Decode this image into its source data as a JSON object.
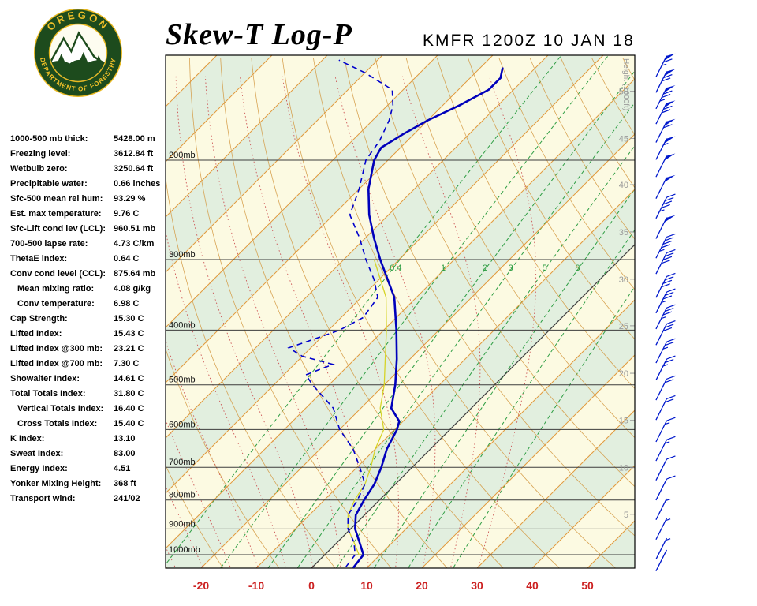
{
  "header": {
    "title": "Skew-T Log-P",
    "station": "KMFR 1200Z 10 JAN 18"
  },
  "logo": {
    "arc_top": "OREGON",
    "arc_bottom": "DEPARTMENT OF FORESTRY"
  },
  "indices": [
    {
      "label": "1000-500 mb thick:",
      "value": "5428.00 m",
      "indent": false
    },
    {
      "label": "Freezing level:",
      "value": "3612.84 ft",
      "indent": false
    },
    {
      "label": "Wetbulb zero:",
      "value": "3250.64 ft",
      "indent": false
    },
    {
      "label": "Precipitable water:",
      "value": "0.66 inches",
      "indent": false
    },
    {
      "label": "Sfc-500 mean rel hum:",
      "value": "93.29 %",
      "indent": false
    },
    {
      "label": "Est. max temperature:",
      "value": "9.76 C",
      "indent": false
    },
    {
      "label": "Sfc-Lift cond lev (LCL):",
      "value": "960.51 mb",
      "indent": false
    },
    {
      "label": "700-500 lapse rate:",
      "value": "4.73 C/km",
      "indent": false
    },
    {
      "label": "ThetaE index:",
      "value": "0.64 C",
      "indent": false
    },
    {
      "label": "Conv cond level (CCL):",
      "value": "875.64 mb",
      "indent": false
    },
    {
      "label": "Mean mixing ratio:",
      "value": "4.08 g/kg",
      "indent": true
    },
    {
      "label": "Conv temperature:",
      "value": "6.98 C",
      "indent": true
    },
    {
      "label": "Cap Strength:",
      "value": "15.30 C",
      "indent": false
    },
    {
      "label": "Lifted Index:",
      "value": "15.43 C",
      "indent": false
    },
    {
      "label": "Lifted Index @300 mb:",
      "value": "23.21 C",
      "indent": false
    },
    {
      "label": "Lifted Index @700 mb:",
      "value": "7.30 C",
      "indent": false
    },
    {
      "label": "Showalter Index:",
      "value": "14.61 C",
      "indent": false
    },
    {
      "label": "Total Totals Index:",
      "value": "31.80 C",
      "indent": false
    },
    {
      "label": "Vertical Totals Index:",
      "value": "16.40 C",
      "indent": true
    },
    {
      "label": "Cross Totals Index:",
      "value": "15.40 C",
      "indent": true
    },
    {
      "label": "K Index:",
      "value": "13.10",
      "indent": false
    },
    {
      "label": "Sweat Index:",
      "value": "83.00",
      "indent": false
    },
    {
      "label": "Energy Index:",
      "value": "4.51",
      "indent": false
    },
    {
      "label": "Yonker Mixing Height:",
      "value": "368 ft",
      "indent": false
    },
    {
      "label": "Transport wind:",
      "value": "241/02",
      "indent": false
    }
  ],
  "chart_data": {
    "type": "skewt-log-p",
    "title": "Skew-T Log-P",
    "station_line": "KMFR 1200Z 10 JAN 18",
    "pressure_axis": {
      "unit": "mb",
      "levels": [
        200,
        300,
        400,
        500,
        600,
        700,
        800,
        900,
        1000
      ],
      "labels": [
        "200mb",
        "300mb",
        "400mb",
        "500mb",
        "600mb",
        "700mb",
        "800mb",
        "900mb",
        "1000mb"
      ],
      "label_color": "#111111"
    },
    "temp_axis": {
      "unit": "C",
      "ticks": [
        -20,
        -10,
        0,
        10,
        20,
        30,
        40,
        50
      ],
      "color": "#cc2222"
    },
    "height_axis": {
      "label": "Height (1000ft)",
      "color": "#999999",
      "ticks": [
        {
          "kft": 5,
          "p": 848
        },
        {
          "kft": 10,
          "p": 701
        },
        {
          "kft": 15,
          "p": 578
        },
        {
          "kft": 20,
          "p": 477
        },
        {
          "kft": 25,
          "p": 393
        },
        {
          "kft": 30,
          "p": 325
        },
        {
          "kft": 35,
          "p": 268
        },
        {
          "kft": 40,
          "p": 221
        },
        {
          "kft": 45,
          "p": 183
        },
        {
          "kft": 50,
          "p": 151
        }
      ]
    },
    "band_colors": [
      "#fcfae2",
      "#e2efdf"
    ],
    "isotherms": {
      "min": -140,
      "max": 60,
      "step": 10,
      "color": "#e19a3e",
      "zero_line_color": "#444444"
    },
    "dry_adiabats": {
      "theta_min": -30,
      "theta_max": 160,
      "step": 10,
      "color": "#d49a45"
    },
    "moist_adiabats": {
      "tw_min": -30,
      "tw_max": 30,
      "step": 5,
      "color": "#cc5555"
    },
    "mixing_ratio": {
      "values": [
        0.4,
        1,
        2,
        3,
        5,
        8,
        12,
        20
      ],
      "labeled": [
        "0.4",
        "1",
        "2",
        "3",
        "5",
        "8"
      ],
      "label_pressure": 310,
      "color": "#2f9e44"
    },
    "temperature_profile": {
      "name": "temperature",
      "color": "#0000bb",
      "points_p_t": [
        [
          1055,
          7.5
        ],
        [
          1000,
          7
        ],
        [
          950,
          4
        ],
        [
          900,
          0.8
        ],
        [
          850,
          -1.6
        ],
        [
          800,
          -2.8
        ],
        [
          750,
          -3.8
        ],
        [
          700,
          -5.6
        ],
        [
          650,
          -7.9
        ],
        [
          600,
          -9.6
        ],
        [
          580,
          -10.7
        ],
        [
          550,
          -14.5
        ],
        [
          500,
          -18
        ],
        [
          450,
          -22.4
        ],
        [
          400,
          -27.7
        ],
        [
          350,
          -34
        ],
        [
          300,
          -43.4
        ],
        [
          275,
          -48.4
        ],
        [
          250,
          -53.5
        ],
        [
          225,
          -58.3
        ],
        [
          200,
          -62.5
        ],
        [
          190,
          -63.5
        ],
        [
          180,
          -62
        ],
        [
          170,
          -60
        ],
        [
          160,
          -57
        ],
        [
          150,
          -54.5
        ],
        [
          143,
          -54.5
        ],
        [
          137,
          -56
        ]
      ]
    },
    "dewpoint_profile": {
      "name": "dewpoint",
      "color": "#0000cc",
      "points_p_t": [
        [
          1050,
          6
        ],
        [
          1000,
          5.5
        ],
        [
          950,
          3
        ],
        [
          900,
          -0.5
        ],
        [
          850,
          -3
        ],
        [
          800,
          -4
        ],
        [
          750,
          -5.5
        ],
        [
          700,
          -9.5
        ],
        [
          650,
          -14
        ],
        [
          600,
          -20
        ],
        [
          550,
          -25
        ],
        [
          500,
          -33
        ],
        [
          480,
          -36
        ],
        [
          460,
          -33
        ],
        [
          445,
          -40
        ],
        [
          430,
          -44
        ],
        [
          420,
          -42
        ],
        [
          400,
          -38
        ],
        [
          380,
          -36
        ],
        [
          350,
          -37
        ],
        [
          325,
          -41
        ],
        [
          300,
          -46
        ],
        [
          275,
          -51
        ],
        [
          250,
          -57
        ],
        [
          225,
          -60
        ],
        [
          200,
          -64
        ],
        [
          185,
          -65
        ],
        [
          170,
          -67
        ],
        [
          160,
          -69
        ],
        [
          150,
          -72
        ],
        [
          140,
          -80
        ],
        [
          133,
          -87
        ]
      ]
    },
    "wetbulb_profile": {
      "name": "wetbulb",
      "color": "#d6d428",
      "points_p_t": [
        [
          1000,
          6.2
        ],
        [
          950,
          3
        ],
        [
          900,
          -0.5
        ],
        [
          850,
          -3
        ],
        [
          800,
          -4.5
        ],
        [
          750,
          -5.5
        ],
        [
          700,
          -7.5
        ],
        [
          650,
          -10
        ],
        [
          600,
          -12
        ],
        [
          550,
          -16.5
        ],
        [
          500,
          -20
        ],
        [
          450,
          -24.5
        ],
        [
          400,
          -29.5
        ],
        [
          350,
          -35.5
        ],
        [
          300,
          -44.5
        ]
      ]
    },
    "wind_barbs": {
      "color": "#0018cc",
      "approx_direction_deg": 240,
      "levels": [
        {
          "p": 137,
          "spd": 65
        },
        {
          "p": 146,
          "spd": 70
        },
        {
          "p": 156,
          "spd": 75
        },
        {
          "p": 166,
          "spd": 70
        },
        {
          "p": 179,
          "spd": 60
        },
        {
          "p": 192,
          "spd": 55
        },
        {
          "p": 206,
          "spd": 50
        },
        {
          "p": 225,
          "spd": 50
        },
        {
          "p": 244,
          "spd": 45
        },
        {
          "p": 265,
          "spd": 50
        },
        {
          "p": 287,
          "spd": 45
        },
        {
          "p": 306,
          "spd": 40
        },
        {
          "p": 337,
          "spd": 40
        },
        {
          "p": 359,
          "spd": 35
        },
        {
          "p": 383,
          "spd": 35
        },
        {
          "p": 409,
          "spd": 30
        },
        {
          "p": 440,
          "spd": 25
        },
        {
          "p": 472,
          "spd": 25
        },
        {
          "p": 512,
          "spd": 20
        },
        {
          "p": 555,
          "spd": 20
        },
        {
          "p": 607,
          "spd": 15
        },
        {
          "p": 656,
          "spd": 15
        },
        {
          "p": 710,
          "spd": 10
        },
        {
          "p": 770,
          "spd": 10
        },
        {
          "p": 834,
          "spd": 5
        },
        {
          "p": 904,
          "spd": 5
        },
        {
          "p": 980,
          "spd": 3
        },
        {
          "p": 1028,
          "spd": 2
        }
      ]
    }
  }
}
